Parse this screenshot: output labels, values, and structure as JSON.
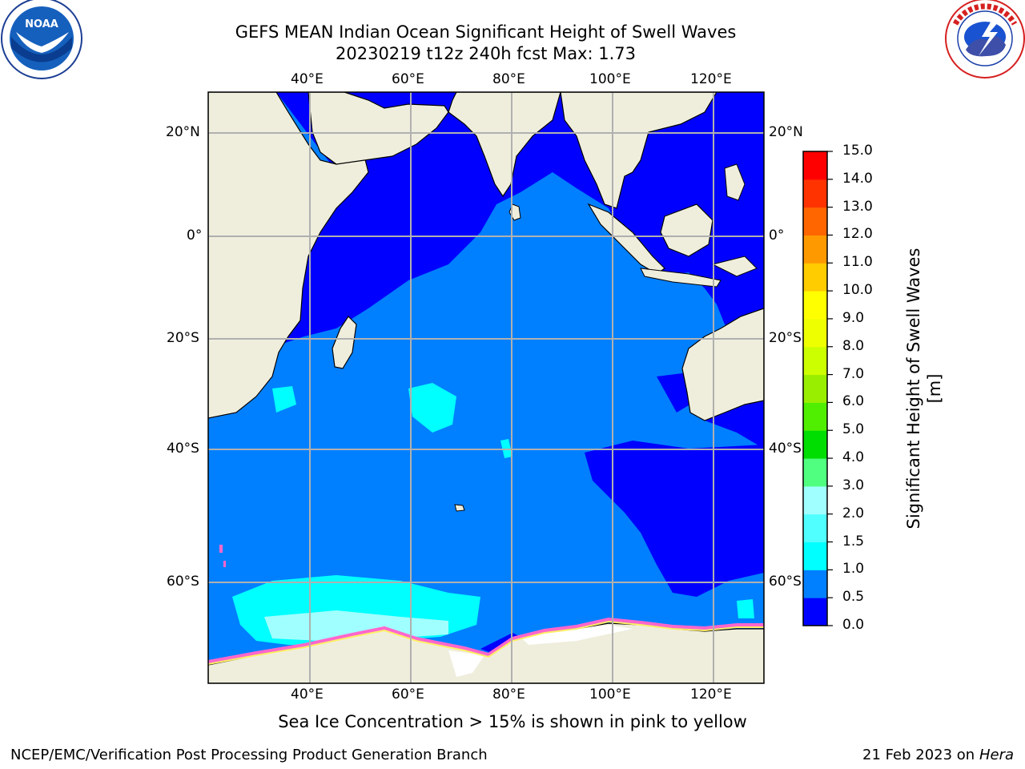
{
  "header": {
    "title_line1": "GEFS MEAN Indian Ocean Significant Height of Swell Waves",
    "title_line2": "20230219 t12z 240h fcst   Max: 1.73"
  },
  "logos": {
    "left": {
      "name": "noaa-logo",
      "text": "NOAA",
      "ring_text": "NATIONAL OCEANIC AND ATMOSPHERIC ADMINISTRATION · U.S. DEPARTMENT OF COMMERCE"
    },
    "right": {
      "name": "nws-logo",
      "ring_text": "NATIONAL WEATHER SERVICE"
    }
  },
  "map": {
    "lon_labels": [
      "40°E",
      "60°E",
      "80°E",
      "100°E",
      "120°E"
    ],
    "lat_labels": [
      "20°N",
      "0°",
      "20°S",
      "40°S",
      "60°S"
    ],
    "colors": {
      "land": "#efeedd",
      "deep_blue": "#0000ff",
      "mid_blue": "#0080ff",
      "cyan": "#00ffff",
      "light_cyan": "#a0ffff",
      "grid": "#b0b0b0"
    }
  },
  "colorbar": {
    "label": "Significant Height of Swell Waves [m]",
    "ticks": [
      "0.0",
      "0.5",
      "1.0",
      "1.5",
      "2.0",
      "3.0",
      "4.0",
      "5.0",
      "6.0",
      "7.0",
      "8.0",
      "9.0",
      "10.0",
      "11.0",
      "12.0",
      "13.0",
      "14.0",
      "15.0"
    ],
    "colors": [
      "#0000ff",
      "#0080ff",
      "#00ffff",
      "#50ffff",
      "#a0ffff",
      "#50ff80",
      "#00dd00",
      "#50ee00",
      "#99ee00",
      "#ccff00",
      "#eeff00",
      "#ffff00",
      "#ffcc00",
      "#ff9900",
      "#ff6600",
      "#ff3300",
      "#ff0000"
    ]
  },
  "caption": "Sea Ice Concentration > 15% is shown in pink to yellow",
  "footer": {
    "left": "NCEP/EMC/Verification Post Processing Product Generation Branch",
    "right_date": "21 Feb 2023 on",
    "right_machine": "Hera"
  }
}
